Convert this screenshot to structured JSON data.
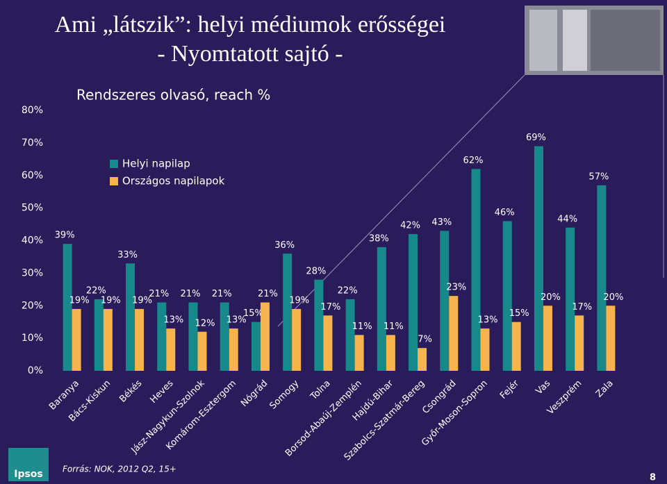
{
  "chart_data": {
    "type": "bar",
    "title": [
      "Ami „látszik”: helyi médiumok erősségei",
      "- Nyomtatott sajtó -"
    ],
    "subtitle": "Rendszeres olvasó, reach %",
    "source": "Forrás: NOK, 2012 Q2, 15+",
    "logo": "Ipsos",
    "page_number": "8",
    "categories": [
      "Baranya",
      "Bács-Kiskun",
      "Békés",
      "Heves",
      "Jász-Nagykun-Szolnok",
      "Komárom-Esztergom",
      "Nógrád",
      "Somogy",
      "Tolna",
      "Borsod-Abaúj-Zemplén",
      "Hajdú-Bihar",
      "Szabolcs-Szatmár-Bereg",
      "Csongrád",
      "Győr-Moson-Sopron",
      "Fejér",
      "Vas",
      "Veszprém",
      "Zala"
    ],
    "series": [
      {
        "name": "Helyi napilap",
        "color": "#17898b",
        "values": [
          39,
          22,
          33,
          21,
          21,
          21,
          15,
          36,
          28,
          22,
          38,
          42,
          43,
          62,
          46,
          69,
          44,
          57
        ],
        "value_labels": [
          "39%",
          "22%",
          "33%",
          "21%",
          "21%",
          "21%",
          "15%",
          "36%",
          "28%",
          "22%",
          "38%",
          "42%",
          "43%",
          "62%",
          "46%",
          "69%",
          "44%",
          "57%"
        ]
      },
      {
        "name": "Országos napilapok",
        "color": "#f7b44c",
        "values": [
          19,
          19,
          19,
          13,
          12,
          13,
          21,
          19,
          17,
          11,
          11,
          7,
          23,
          13,
          15,
          20,
          17,
          20
        ],
        "value_labels": [
          "19%",
          "19%",
          "19%",
          "13%",
          "12%",
          "13%",
          "21%",
          "19%",
          "17%",
          "11%",
          "11%",
          "7%",
          "23%",
          "13%",
          "15%",
          "20%",
          "17%",
          "20%"
        ]
      }
    ],
    "ylim": [
      0,
      80
    ],
    "yticks": [
      {
        "value": 0,
        "label": "0%"
      },
      {
        "value": 10,
        "label": "10%"
      },
      {
        "value": 20,
        "label": "20%"
      },
      {
        "value": 30,
        "label": "30%"
      },
      {
        "value": 40,
        "label": "40%"
      },
      {
        "value": 50,
        "label": "50%"
      },
      {
        "value": 60,
        "label": "60%"
      },
      {
        "value": 70,
        "label": "70%"
      },
      {
        "value": 80,
        "label": "80%"
      }
    ],
    "legend": "upper left"
  }
}
